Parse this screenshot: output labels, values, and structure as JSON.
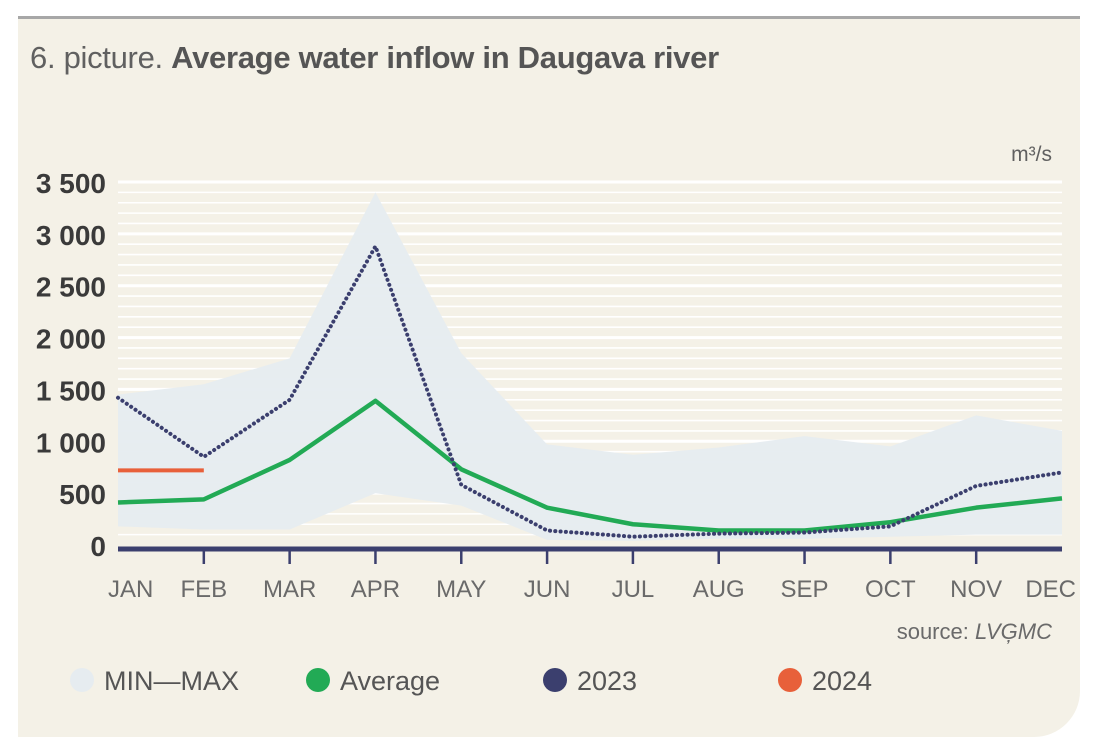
{
  "title": {
    "prefix": "6. picture.",
    "main": "Average water inflow in Daugava river"
  },
  "source_prefix": "source: ",
  "source_name": "LVĢMC",
  "colors": {
    "band": "#e6ecf0",
    "average": "#22aa55",
    "y2023": "#3b3f6e",
    "y2024": "#e8603a",
    "axis": "#3b3f6e",
    "grid": "#ffffff",
    "background": "#f4f1e7"
  },
  "chart_data": {
    "type": "line",
    "unit": "m³/s",
    "categories": [
      "JAN",
      "FEB",
      "MAR",
      "APR",
      "MAY",
      "JUN",
      "JUL",
      "AUG",
      "SEP",
      "OCT",
      "NOV",
      "DEC"
    ],
    "ylim": [
      0,
      3500
    ],
    "yticks": [
      0,
      500,
      1000,
      1500,
      2000,
      2500,
      3000,
      3500
    ],
    "ytick_labels": [
      "0",
      "500",
      "1 000",
      "1 500",
      "2 000",
      "2 500",
      "3 000",
      "3 500"
    ],
    "grid": true,
    "legend_position": "bottom",
    "band": {
      "name": "MIN—MAX",
      "min": [
        180,
        150,
        150,
        500,
        380,
        50,
        40,
        60,
        60,
        80,
        100,
        100
      ],
      "max": [
        1450,
        1550,
        1800,
        3400,
        1850,
        970,
        870,
        940,
        1050,
        950,
        1250,
        1100
      ]
    },
    "series": [
      {
        "name": "Average",
        "values": [
          410,
          440,
          820,
          1390,
          730,
          360,
          200,
          140,
          140,
          220,
          360,
          450
        ]
      },
      {
        "name": "2023",
        "values": [
          1420,
          850,
          1400,
          2880,
          580,
          140,
          80,
          110,
          120,
          180,
          570,
          700
        ]
      },
      {
        "name": "2024",
        "values": [
          720,
          720,
          null,
          null,
          null,
          null,
          null,
          null,
          null,
          null,
          null,
          null
        ]
      }
    ]
  }
}
